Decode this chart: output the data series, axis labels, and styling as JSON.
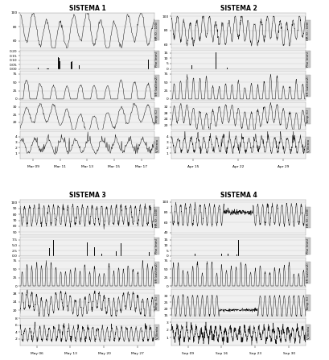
{
  "sistemas": [
    {
      "title": "SISTEMA 1",
      "dates_label": [
        "Mar 09",
        "Mar 11",
        "Mar 13",
        "Mar 15",
        "Mar 17"
      ],
      "n_days": 10,
      "hr": {
        "ylim": [
          50,
          100
        ],
        "yticks": [
          60,
          80,
          100
        ],
        "ylabel": "HR (0 - 100)"
      },
      "phe": {
        "ylim": [
          0,
          0.22
        ],
        "yticks": [
          0.0,
          0.05,
          0.1,
          0.15,
          0.2
        ],
        "ylabel": "Phe (mm)"
      },
      "sr": {
        "ylim": [
          -5,
          85
        ],
        "yticks": [
          0,
          25,
          50,
          75
        ],
        "ylabel": "SR (cal/cm2)"
      },
      "temp": {
        "ylim": [
          15,
          33
        ],
        "yticks": [
          20,
          25,
          30
        ],
        "ylabel": "Temp (C)"
      },
      "vv": {
        "ylim": [
          0,
          5
        ],
        "yticks": [
          1,
          2,
          3,
          4
        ],
        "ylabel": "V_Viento"
      }
    },
    {
      "title": "SISTEMA 2",
      "dates_label": [
        "Apr 15",
        "Apr 22",
        "Apr 29"
      ],
      "n_days": 21,
      "hr": {
        "ylim": [
          55,
          105
        ],
        "yticks": [
          60,
          80,
          100
        ],
        "ylabel": "HR (0 - 100)"
      },
      "phe": {
        "ylim": [
          0,
          18
        ],
        "yticks": [
          0,
          5,
          10,
          15
        ],
        "ylabel": "Phe (mm)"
      },
      "sr": {
        "ylim": [
          -5,
          85
        ],
        "yticks": [
          0,
          25,
          50,
          75
        ],
        "ylabel": "SR (cal/cm2)"
      },
      "temp": {
        "ylim": [
          17,
          35
        ],
        "yticks": [
          20,
          24,
          28,
          32
        ],
        "ylabel": "Temp (C)"
      },
      "vv": {
        "ylim": [
          0,
          5
        ],
        "yticks": [
          1,
          2,
          3,
          4
        ],
        "ylabel": "V_Viento"
      }
    },
    {
      "title": "SISTEMA 3",
      "dates_label": [
        "May 06",
        "May 13",
        "May 20",
        "May 27"
      ],
      "n_days": 28,
      "hr": {
        "ylim": [
          45,
          105
        ],
        "yticks": [
          50,
          60,
          70,
          80,
          90,
          100
        ],
        "ylabel": "HR (0 - 100)"
      },
      "phe": {
        "ylim": [
          0,
          9
        ],
        "yticks": [
          0.0,
          2.5,
          5.0,
          7.5
        ],
        "ylabel": "Phe (mm)"
      },
      "sr": {
        "ylim": [
          -5,
          85
        ],
        "yticks": [
          0,
          25,
          50,
          75
        ],
        "ylabel": "SR (cal/cm2)"
      },
      "temp": {
        "ylim": [
          17,
          30
        ],
        "yticks": [
          20,
          24,
          28
        ],
        "ylabel": "Temp (C)"
      },
      "vv": {
        "ylim": [
          0,
          8
        ],
        "yticks": [
          2,
          4,
          6,
          8
        ],
        "ylabel": "V_Viento"
      }
    },
    {
      "title": "SISTEMA 4",
      "dates_label": [
        "Sep 09",
        "Sep 16",
        "Sep 23",
        "Sep 30"
      ],
      "n_days": 28,
      "hr": {
        "ylim": [
          35,
          105
        ],
        "yticks": [
          40,
          60,
          80,
          100
        ],
        "ylabel": "HR (0 - 100)"
      },
      "phe": {
        "ylim": [
          0,
          18
        ],
        "yticks": [
          0,
          5,
          10,
          15
        ],
        "ylabel": "Phe (mm)"
      },
      "sr": {
        "ylim": [
          -5,
          85
        ],
        "yticks": [
          0,
          25,
          50,
          75
        ],
        "ylabel": "SR (cal/cm2)"
      },
      "temp": {
        "ylim": [
          14,
          35
        ],
        "yticks": [
          15,
          20,
          25,
          30
        ],
        "ylabel": "Temp (C)"
      },
      "vv": {
        "ylim": [
          0,
          3.5
        ],
        "yticks": [
          1,
          2,
          3
        ],
        "ylabel": "V_Viento"
      }
    }
  ],
  "bg_color": "#f0f0f0",
  "line_color": "#111111",
  "bar_color": "#111111",
  "grid_color": "#cccccc",
  "ylabel_bg": "#c8c8c8",
  "height_ratios": [
    1.3,
    0.7,
    1.1,
    1.0,
    1.0
  ]
}
